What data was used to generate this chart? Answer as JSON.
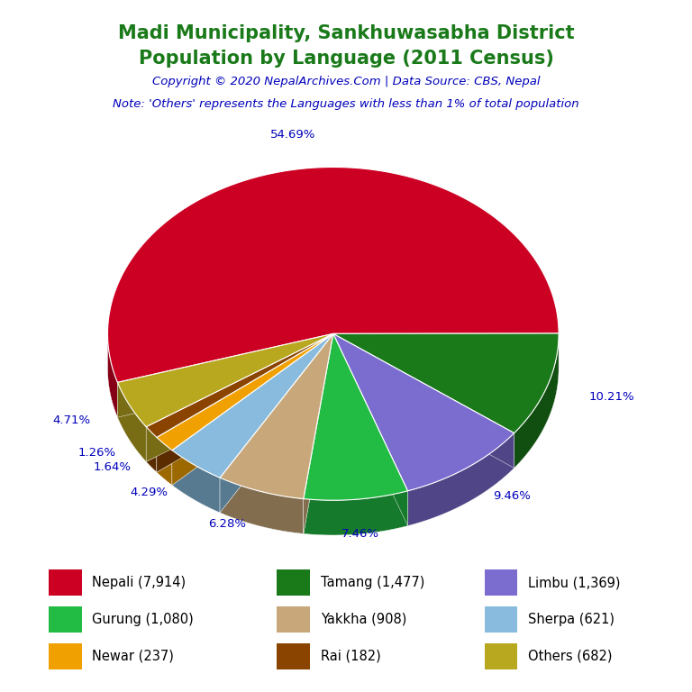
{
  "title_line1": "Madi Municipality, Sankhuwasabha District",
  "title_line2": "Population by Language (2011 Census)",
  "copyright": "Copyright © 2020 NepalArchives.Com | Data Source: CBS, Nepal",
  "note": "Note: 'Others' represents the Languages with less than 1% of total population",
  "labels": [
    "Nepali",
    "Tamang",
    "Limbu",
    "Gurung",
    "Yakkha",
    "Sherpa",
    "Newar",
    "Rai",
    "Others"
  ],
  "values": [
    7914,
    1477,
    1369,
    1080,
    908,
    621,
    237,
    182,
    682
  ],
  "colors": [
    "#cc0022",
    "#1a7a1a",
    "#7b6cd0",
    "#22bb44",
    "#c8a87a",
    "#88bbdd",
    "#f0a000",
    "#8b4400",
    "#b8a820"
  ],
  "legend_labels": [
    "Nepali (7,914)",
    "Tamang (1,477)",
    "Limbu (1,369)",
    "Gurung (1,080)",
    "Yakkha (908)",
    "Sherpa (621)",
    "Newar (237)",
    "Rai (182)",
    "Others (682)"
  ],
  "title_color": "#1a7a1a",
  "copyright_color": "#0000bb",
  "note_color": "#0000bb",
  "pct_color": "#0000bb",
  "background_color": "#ffffff"
}
